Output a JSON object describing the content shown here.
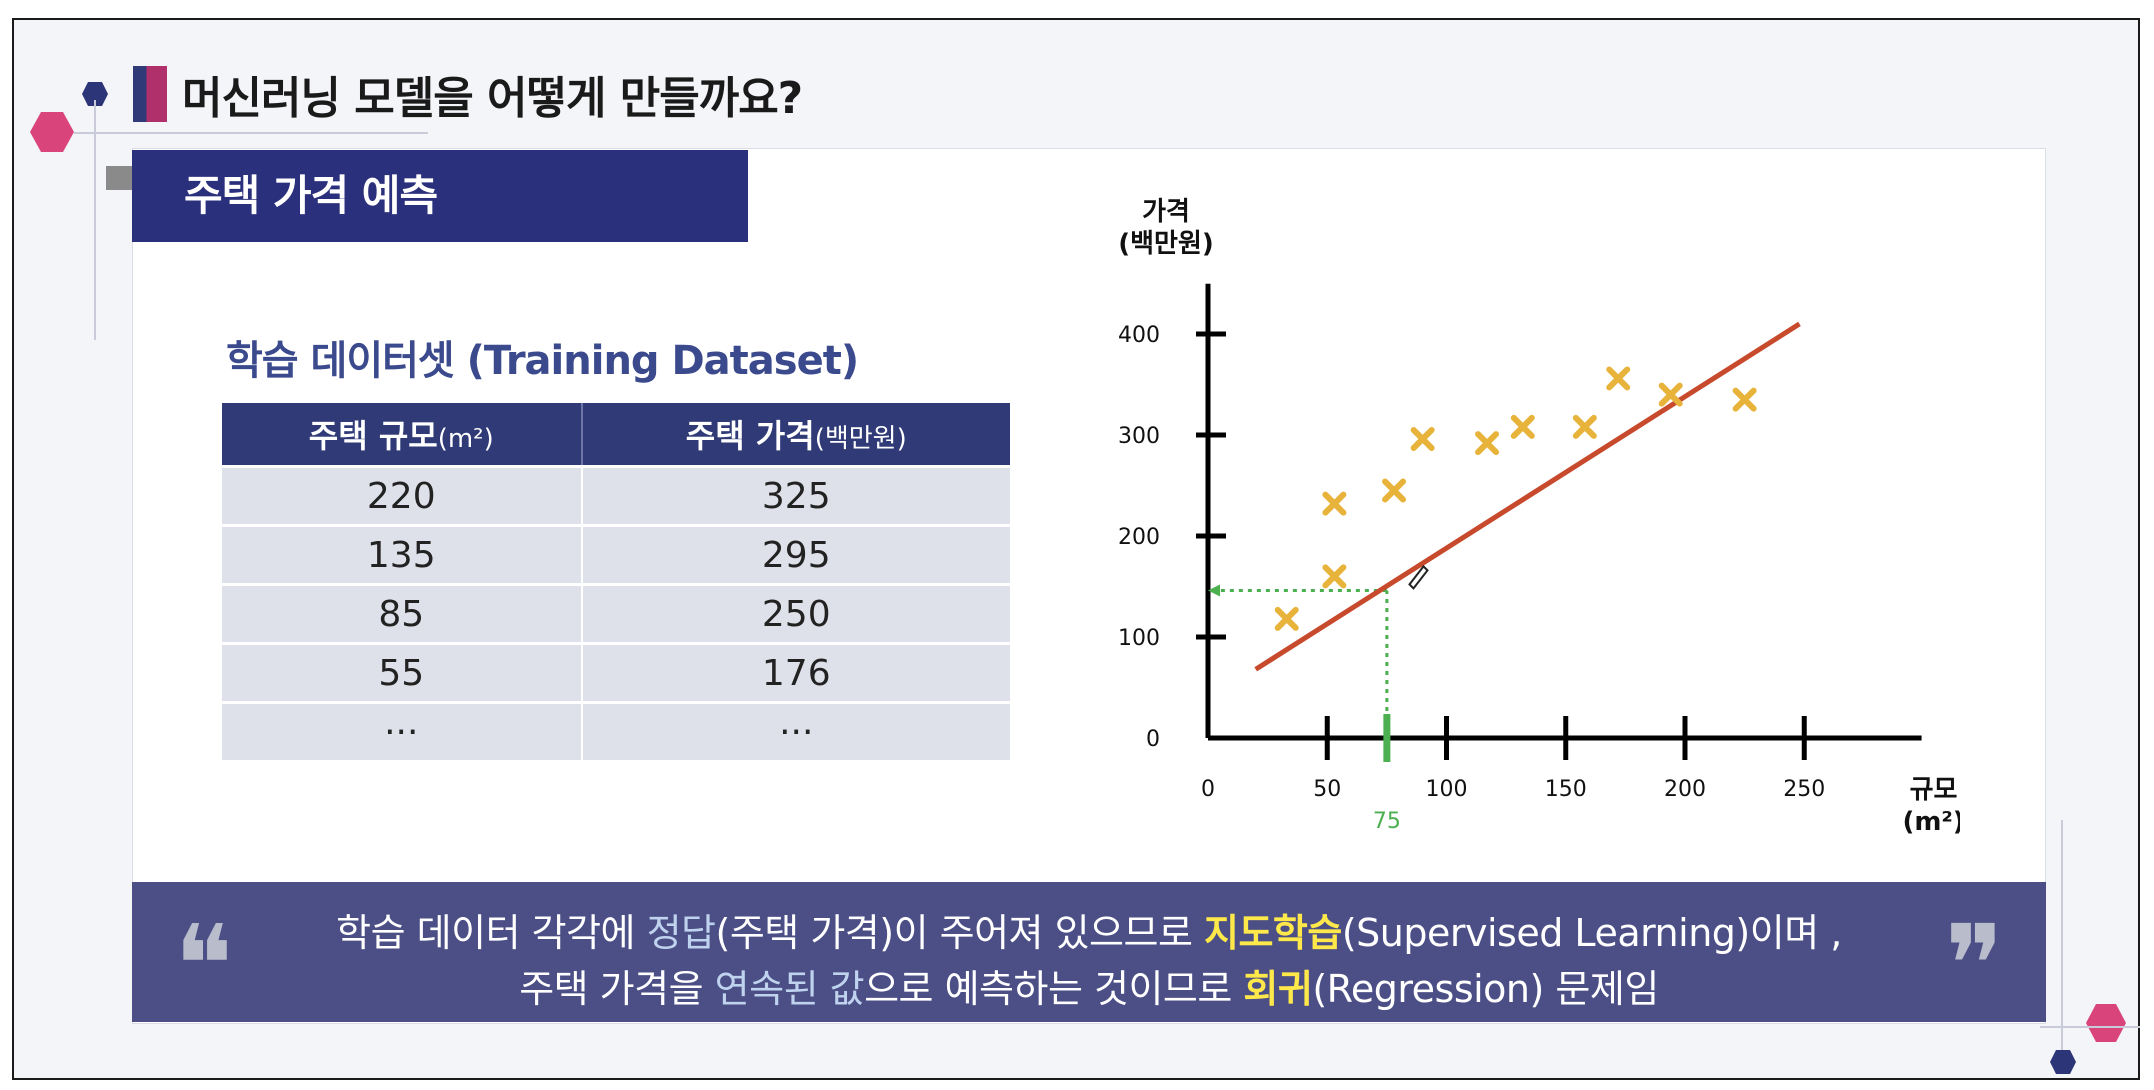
{
  "slide": {
    "title": "머신러닝 모델을 어떻게 만들까요?",
    "section_tab": "주택 가격 예측",
    "dataset_title": "학습 데이터셋 (Training Dataset)"
  },
  "table": {
    "headers": [
      {
        "main": "주택 규모",
        "unit": "(m²)"
      },
      {
        "main": "주택 가격",
        "unit": "(백만원)"
      }
    ],
    "rows": [
      [
        "220",
        "325"
      ],
      [
        "135",
        "295"
      ],
      [
        "85",
        "250"
      ],
      [
        "55",
        "176"
      ],
      [
        "···",
        "···"
      ]
    ]
  },
  "quote": {
    "line1_a": "학습 데이터 각각에 ",
    "line1_b": "정답",
    "line1_c": "(주택 가격)이 주어져 있으므로 ",
    "line1_d": "지도학습",
    "line1_e": "(Supervised Learning)이며 ,",
    "line2_a": "주택 가격을 ",
    "line2_b": "연속된 값",
    "line2_c": "으로 예측하는 것이므로 ",
    "line2_d": "회귀",
    "line2_e": "(Regression) 문제임",
    "open_mark": "❝",
    "close_mark": "❞"
  },
  "colors": {
    "navy": "#2b307c",
    "table_header": "#2f3a77",
    "points": "#e8b33a",
    "regression_line": "#c84a2c",
    "guide": "#4caf50",
    "quote_bg": "#4b4f86",
    "quote_highlight": "#ffe94a"
  },
  "chart_data": {
    "type": "scatter",
    "ylabel_line1": "가격",
    "ylabel_line2": "(백만원)",
    "xlabel_line1": "규모",
    "xlabel_line2": "(m²)",
    "xlim": [
      0,
      295
    ],
    "ylim": [
      0,
      430
    ],
    "xticks": [
      0,
      50,
      100,
      150,
      200,
      250
    ],
    "yticks": [
      0,
      100,
      200,
      300,
      400
    ],
    "points": [
      {
        "x": 33,
        "y": 118
      },
      {
        "x": 53,
        "y": 232
      },
      {
        "x": 53,
        "y": 160
      },
      {
        "x": 78,
        "y": 245
      },
      {
        "x": 90,
        "y": 296
      },
      {
        "x": 117,
        "y": 292
      },
      {
        "x": 132,
        "y": 308
      },
      {
        "x": 158,
        "y": 308
      },
      {
        "x": 172,
        "y": 356
      },
      {
        "x": 194,
        "y": 340
      },
      {
        "x": 225,
        "y": 335
      }
    ],
    "regression_line": {
      "x1": 20,
      "y1": 68,
      "x2": 248,
      "y2": 410
    },
    "prediction": {
      "x": 75,
      "y": 146,
      "x_label": "75"
    },
    "cursor": {
      "x": 87,
      "y": 162
    }
  }
}
